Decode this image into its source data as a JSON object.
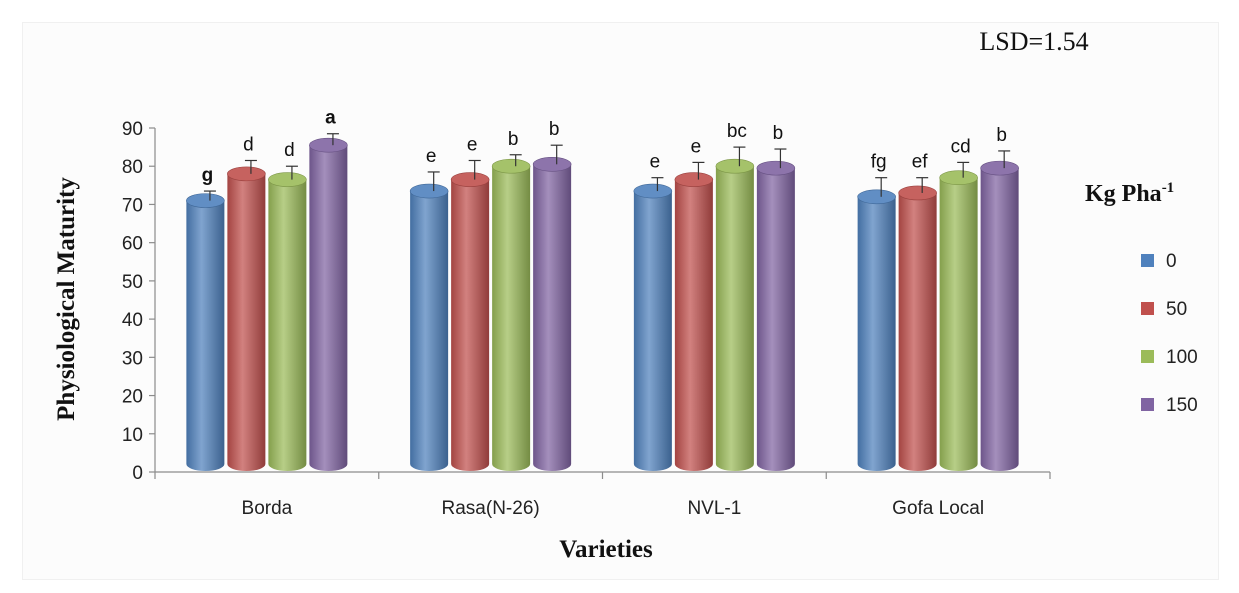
{
  "chart_data": {
    "type": "bar",
    "annotation": "LSD=1.54",
    "xlabel": "Varieties",
    "ylabel": "Physiological Maturity",
    "ylim": [
      0,
      90
    ],
    "yticks": [
      "0",
      "10",
      "20",
      "30",
      "40",
      "50",
      "60",
      "70",
      "80",
      "90"
    ],
    "categories": [
      "Borda",
      "Rasa(N-26)",
      "NVL-1",
      "Gofa Local"
    ],
    "legend_title": "Kg Pha",
    "legend_title_sup": "-1",
    "legend_position": "right",
    "grid": false,
    "series": [
      {
        "name": "0",
        "color": "#4f81bd",
        "values": [
          71,
          73.5,
          73.5,
          72
        ],
        "errors": [
          2.5,
          5,
          3.5,
          5
        ],
        "letters": [
          "g",
          "e",
          "e",
          "fg"
        ]
      },
      {
        "name": "50",
        "color": "#c0504d",
        "values": [
          78,
          76.5,
          76.5,
          73
        ],
        "errors": [
          3.5,
          5,
          4.5,
          4
        ],
        "letters": [
          "d",
          "e",
          "e",
          "ef"
        ]
      },
      {
        "name": "100",
        "color": "#9bbb59",
        "values": [
          76.5,
          80,
          80,
          77
        ],
        "errors": [
          3.5,
          3,
          5,
          4
        ],
        "letters": [
          "d",
          "b",
          "bc",
          "cd"
        ]
      },
      {
        "name": "150",
        "color": "#8064a2",
        "values": [
          85.5,
          80.5,
          79.5,
          79.5
        ],
        "errors": [
          3,
          5,
          5,
          4.5
        ],
        "letters": [
          "a",
          "b",
          "b",
          "b"
        ]
      }
    ]
  }
}
